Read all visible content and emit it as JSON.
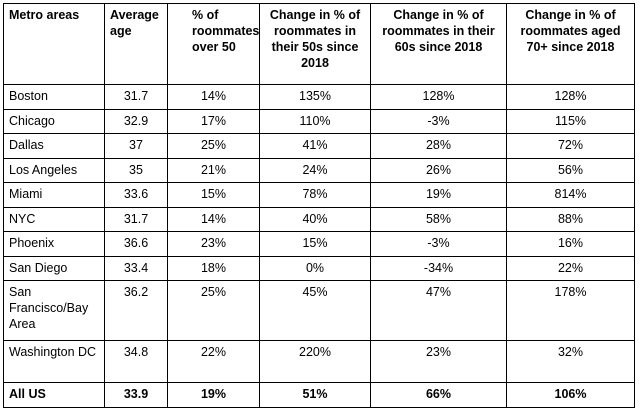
{
  "table": {
    "headers": {
      "metro": "Metro areas",
      "avg_age": "Average age",
      "pct_over_50": "% of roommates over 50",
      "change_50s": "Change in % of roommates in their 50s since 2018",
      "change_60s": "Change in % of roommates in their 60s since 2018",
      "change_70plus": "Change in % of roommates aged 70+ since 2018"
    },
    "rows": [
      {
        "metro": "Boston",
        "avg_age": "31.7",
        "pct_over_50": "14%",
        "change_50s": "135%",
        "change_60s": "128%",
        "change_70plus": "128%"
      },
      {
        "metro": "Chicago",
        "avg_age": "32.9",
        "pct_over_50": "17%",
        "change_50s": "110%",
        "change_60s": "-3%",
        "change_70plus": "115%"
      },
      {
        "metro": "Dallas",
        "avg_age": "37",
        "pct_over_50": "25%",
        "change_50s": "41%",
        "change_60s": "28%",
        "change_70plus": "72%"
      },
      {
        "metro": "Los Angeles",
        "avg_age": "35",
        "pct_over_50": "21%",
        "change_50s": "24%",
        "change_60s": "26%",
        "change_70plus": "56%"
      },
      {
        "metro": "Miami",
        "avg_age": "33.6",
        "pct_over_50": "15%",
        "change_50s": "78%",
        "change_60s": "19%",
        "change_70plus": "814%"
      },
      {
        "metro": "NYC",
        "avg_age": "31.7",
        "pct_over_50": "14%",
        "change_50s": "40%",
        "change_60s": "58%",
        "change_70plus": "88%"
      },
      {
        "metro": "Phoenix",
        "avg_age": "36.6",
        "pct_over_50": "23%",
        "change_50s": "15%",
        "change_60s": "-3%",
        "change_70plus": "16%"
      },
      {
        "metro": "San Diego",
        "avg_age": "33.4",
        "pct_over_50": "18%",
        "change_50s": "0%",
        "change_60s": "-34%",
        "change_70plus": "22%"
      },
      {
        "metro": "San Francisco/Bay Area",
        "avg_age": "36.2",
        "pct_over_50": "25%",
        "change_50s": "45%",
        "change_60s": "47%",
        "change_70plus": "178%"
      },
      {
        "metro": "Washington DC",
        "avg_age": "34.8",
        "pct_over_50": "22%",
        "change_50s": "220%",
        "change_60s": "23%",
        "change_70plus": "32%"
      }
    ],
    "total": {
      "metro": "All US",
      "avg_age": "33.9",
      "pct_over_50": "19%",
      "change_50s": "51%",
      "change_60s": "66%",
      "change_70plus": "106%"
    }
  }
}
